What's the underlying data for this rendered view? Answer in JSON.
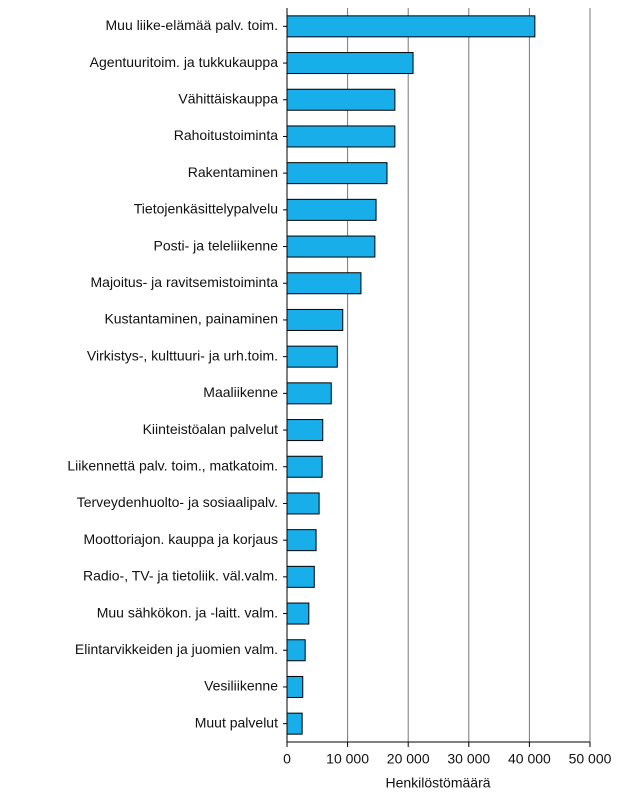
{
  "chart_data": {
    "type": "barh",
    "xlabel": "Henkilöstömäärä",
    "categories": [
      "Muu liike-elämää palv. toim.",
      "Agentuuritoim. ja tukkukauppa",
      "Vähittäiskauppa",
      "Rahoitustoiminta",
      "Rakentaminen",
      "Tietojenkäsittelypalvelu",
      "Posti- ja teleliikenne",
      "Majoitus- ja ravitsemistoiminta",
      "Kustantaminen, painaminen",
      "Virkistys-, kulttuuri- ja urh.toim.",
      "Maaliikenne",
      "Kiinteistöalan palvelut",
      "Liikennettä palv. toim., matkatoim.",
      "Terveydenhuolto- ja sosiaalipalv.",
      "Moottoriajon. kauppa ja korjaus",
      "Radio-, TV- ja tietoliik. väl.valm.",
      "Muu sähkökon. ja -laitt. valm.",
      "Elintarvikkeiden ja juomien valm.",
      "Vesiliikenne",
      "Muut palvelut"
    ],
    "values": [
      40900,
      20800,
      17800,
      17800,
      16500,
      14700,
      14500,
      12200,
      9200,
      8300,
      7300,
      5900,
      5800,
      5300,
      4800,
      4500,
      3600,
      3000,
      2600,
      2500
    ],
    "color": "#18aeea",
    "xlim": [
      0,
      50000
    ],
    "xticks": [
      0,
      {
        "value": 10000,
        "label": "10 000"
      },
      {
        "value": 20000,
        "label": "20 000"
      },
      {
        "value": 30000,
        "label": "30 000"
      },
      {
        "value": 40000,
        "label": "40 000"
      },
      {
        "value": 50000,
        "label": "50 000"
      }
    ],
    "grid": true
  }
}
